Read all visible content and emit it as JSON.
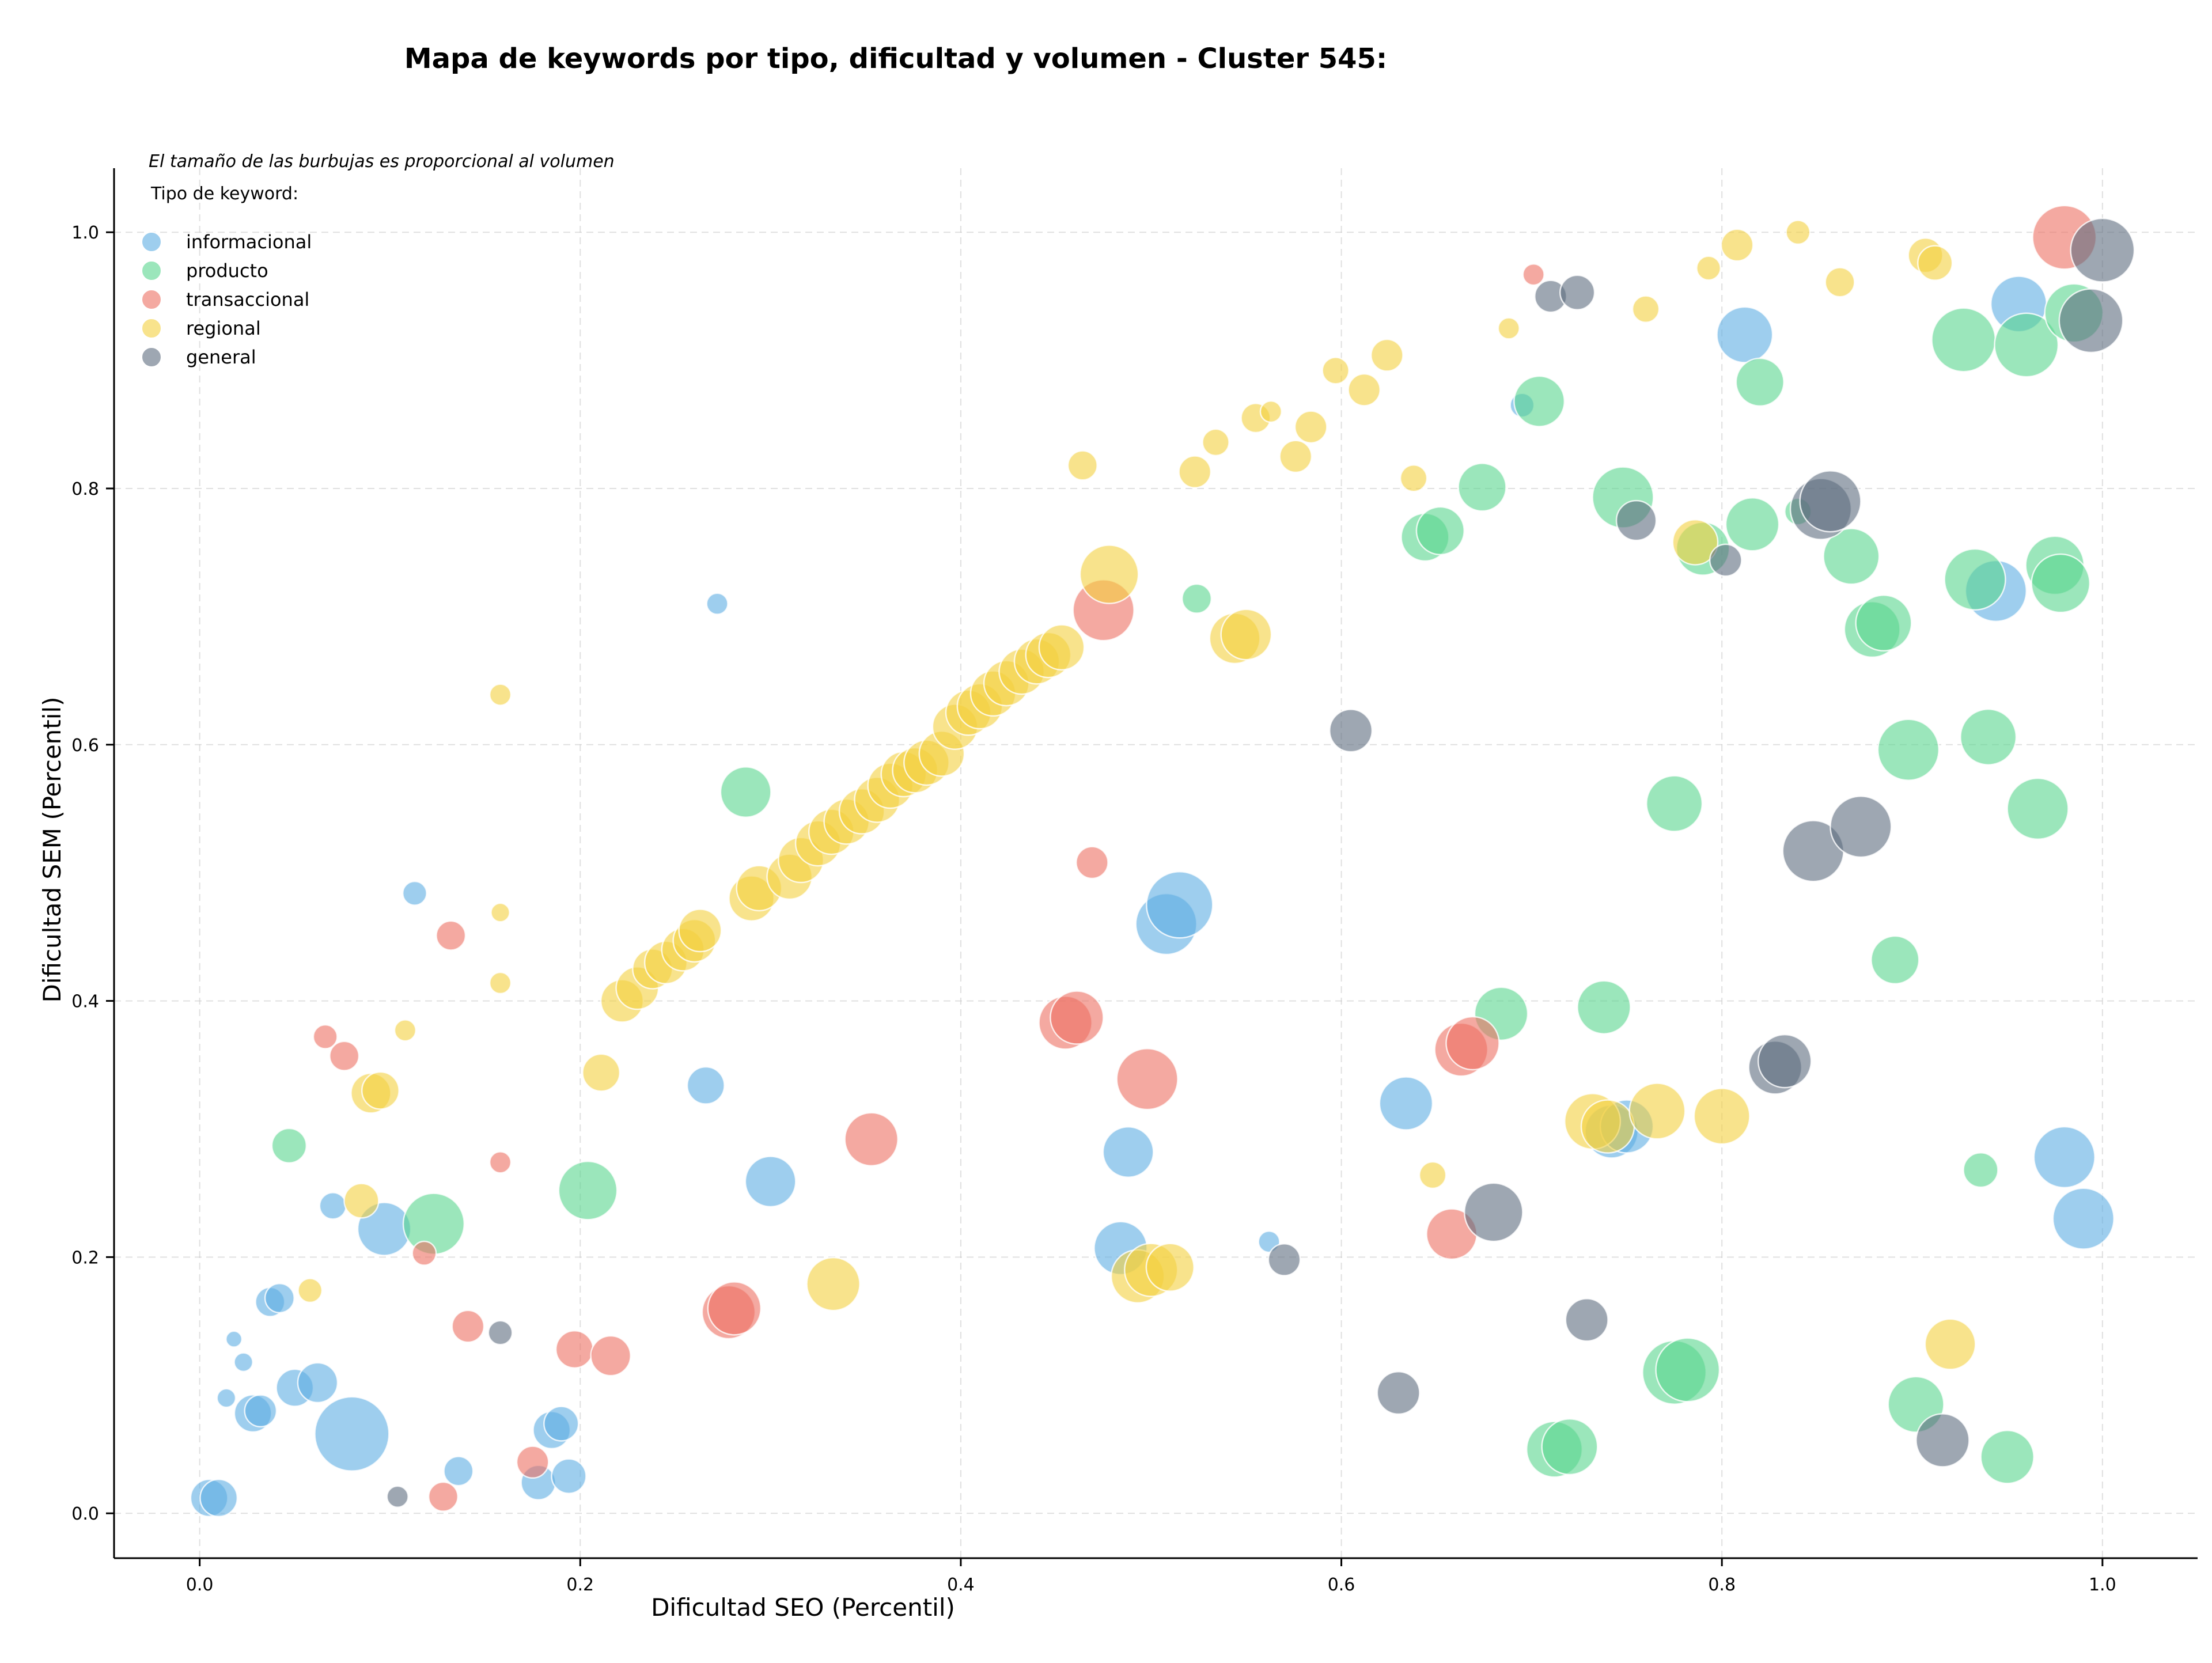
{
  "chart_data": {
    "type": "scatter",
    "title": "Mapa de keywords por tipo, dificultad y volumen - Cluster 545:",
    "xlabel": "Dificultad SEO (Percentil)",
    "ylabel": "Dificultad SEM (Percentil)",
    "xlim": [
      -0.045,
      1.05
    ],
    "ylim": [
      -0.035,
      1.05
    ],
    "xticks": [
      0.0,
      0.2,
      0.4,
      0.6,
      0.8,
      1.0
    ],
    "yticks": [
      0.0,
      0.2,
      0.4,
      0.6,
      0.8,
      1.0
    ],
    "xtick_labels": [
      "0.0",
      "0.2",
      "0.4",
      "0.6",
      "0.8",
      "1.0"
    ],
    "ytick_labels": [
      "0.0",
      "0.2",
      "0.4",
      "0.6",
      "0.8",
      "1.0"
    ],
    "grid": true,
    "annotation": "El tamaño de las burbujas es proporcional al volumen",
    "legend_title": "Tipo de keyword:",
    "legend_position": "top-left",
    "series": [
      {
        "name": "informacional",
        "color": "#5DADE2",
        "points": [
          [
            0.005,
            0.012,
            0.7
          ],
          [
            0.01,
            0.012,
            0.7
          ],
          [
            0.018,
            0.136,
            0.3
          ],
          [
            0.023,
            0.118,
            0.35
          ],
          [
            0.014,
            0.09,
            0.35
          ],
          [
            0.028,
            0.078,
            0.7
          ],
          [
            0.032,
            0.08,
            0.6
          ],
          [
            0.037,
            0.165,
            0.55
          ],
          [
            0.042,
            0.168,
            0.55
          ],
          [
            0.05,
            0.098,
            0.7
          ],
          [
            0.062,
            0.102,
            0.75
          ],
          [
            0.07,
            0.24,
            0.5
          ],
          [
            0.08,
            0.062,
            1.4
          ],
          [
            0.097,
            0.222,
            1.0
          ],
          [
            0.113,
            0.484,
            0.45
          ],
          [
            0.136,
            0.033,
            0.55
          ],
          [
            0.178,
            0.024,
            0.65
          ],
          [
            0.185,
            0.065,
            0.7
          ],
          [
            0.19,
            0.07,
            0.65
          ],
          [
            0.194,
            0.029,
            0.65
          ],
          [
            0.266,
            0.334,
            0.7
          ],
          [
            0.272,
            0.71,
            0.4
          ],
          [
            0.3,
            0.259,
            0.95
          ],
          [
            0.484,
            0.207,
            1.0
          ],
          [
            0.488,
            0.282,
            0.95
          ],
          [
            0.508,
            0.46,
            1.15
          ],
          [
            0.515,
            0.475,
            1.25
          ],
          [
            0.562,
            0.212,
            0.4
          ],
          [
            0.634,
            0.32,
            1.0
          ],
          [
            0.695,
            0.865,
            0.45
          ],
          [
            0.742,
            0.298,
            1.0
          ],
          [
            0.75,
            0.302,
            1.0
          ],
          [
            0.812,
            0.92,
            1.05
          ],
          [
            0.944,
            0.72,
            1.15
          ],
          [
            0.956,
            0.944,
            1.05
          ],
          [
            0.98,
            0.278,
            1.15
          ],
          [
            0.99,
            0.23,
            1.15
          ]
        ]
      },
      {
        "name": "producto",
        "color": "#58D68D",
        "points": [
          [
            0.047,
            0.287,
            0.65
          ],
          [
            0.123,
            0.226,
            1.15
          ],
          [
            0.204,
            0.252,
            1.1
          ],
          [
            0.287,
            0.563,
            0.95
          ],
          [
            0.524,
            0.714,
            0.55
          ],
          [
            0.644,
            0.762,
            0.9
          ],
          [
            0.652,
            0.767,
            0.9
          ],
          [
            0.674,
            0.801,
            0.9
          ],
          [
            0.684,
            0.39,
            1.0
          ],
          [
            0.704,
            0.868,
            0.95
          ],
          [
            0.712,
            0.05,
            1.05
          ],
          [
            0.72,
            0.052,
            1.05
          ],
          [
            0.738,
            0.395,
            1.0
          ],
          [
            0.748,
            0.793,
            1.15
          ],
          [
            0.775,
            0.554,
            1.05
          ],
          [
            0.775,
            0.11,
            1.2
          ],
          [
            0.782,
            0.112,
            1.2
          ],
          [
            0.79,
            0.753,
            1.0
          ],
          [
            0.816,
            0.772,
            1.0
          ],
          [
            0.82,
            0.883,
            0.9
          ],
          [
            0.84,
            0.782,
            0.5
          ],
          [
            0.868,
            0.747,
            1.05
          ],
          [
            0.879,
            0.69,
            1.05
          ],
          [
            0.885,
            0.695,
            1.05
          ],
          [
            0.891,
            0.432,
            0.9
          ],
          [
            0.898,
            0.596,
            1.15
          ],
          [
            0.902,
            0.085,
            1.05
          ],
          [
            0.927,
            0.916,
            1.2
          ],
          [
            0.933,
            0.729,
            1.15
          ],
          [
            0.936,
            0.268,
            0.65
          ],
          [
            0.94,
            0.606,
            1.05
          ],
          [
            0.95,
            0.044,
            1.0
          ],
          [
            0.96,
            0.912,
            1.2
          ],
          [
            0.966,
            0.55,
            1.15
          ],
          [
            0.975,
            0.74,
            1.1
          ],
          [
            0.978,
            0.726,
            1.1
          ],
          [
            0.985,
            0.937,
            1.1
          ]
        ]
      },
      {
        "name": "transaccional",
        "color": "#EC7063",
        "points": [
          [
            0.066,
            0.372,
            0.45
          ],
          [
            0.076,
            0.357,
            0.55
          ],
          [
            0.118,
            0.203,
            0.45
          ],
          [
            0.128,
            0.013,
            0.55
          ],
          [
            0.132,
            0.451,
            0.55
          ],
          [
            0.141,
            0.146,
            0.6
          ],
          [
            0.158,
            0.274,
            0.4
          ],
          [
            0.175,
            0.04,
            0.6
          ],
          [
            0.197,
            0.128,
            0.7
          ],
          [
            0.216,
            0.123,
            0.75
          ],
          [
            0.278,
            0.157,
            1.0
          ],
          [
            0.281,
            0.16,
            1.0
          ],
          [
            0.353,
            0.292,
            1.0
          ],
          [
            0.455,
            0.383,
            1.0
          ],
          [
            0.461,
            0.387,
            1.0
          ],
          [
            0.469,
            0.508,
            0.6
          ],
          [
            0.475,
            0.705,
            1.15
          ],
          [
            0.498,
            0.339,
            1.15
          ],
          [
            0.658,
            0.218,
            0.95
          ],
          [
            0.663,
            0.362,
            1.0
          ],
          [
            0.669,
            0.367,
            1.0
          ],
          [
            0.701,
            0.967,
            0.4
          ],
          [
            0.98,
            0.996,
            1.2
          ]
        ]
      },
      {
        "name": "regional",
        "color": "#F4D03F",
        "points": [
          [
            0.058,
            0.174,
            0.45
          ],
          [
            0.085,
            0.244,
            0.65
          ],
          [
            0.09,
            0.328,
            0.75
          ],
          [
            0.095,
            0.33,
            0.7
          ],
          [
            0.108,
            0.377,
            0.4
          ],
          [
            0.158,
            0.639,
            0.4
          ],
          [
            0.158,
            0.469,
            0.35
          ],
          [
            0.158,
            0.414,
            0.4
          ],
          [
            0.211,
            0.344,
            0.7
          ],
          [
            0.222,
            0.4,
            0.8
          ],
          [
            0.23,
            0.41,
            0.8
          ],
          [
            0.238,
            0.425,
            0.75
          ],
          [
            0.245,
            0.43,
            0.8
          ],
          [
            0.254,
            0.44,
            0.8
          ],
          [
            0.26,
            0.447,
            0.8
          ],
          [
            0.263,
            0.455,
            0.8
          ],
          [
            0.29,
            0.48,
            0.85
          ],
          [
            0.294,
            0.488,
            0.85
          ],
          [
            0.31,
            0.497,
            0.85
          ],
          [
            0.316,
            0.51,
            0.85
          ],
          [
            0.325,
            0.523,
            0.85
          ],
          [
            0.332,
            0.532,
            0.85
          ],
          [
            0.34,
            0.54,
            0.85
          ],
          [
            0.348,
            0.548,
            0.85
          ],
          [
            0.356,
            0.557,
            0.85
          ],
          [
            0.363,
            0.568,
            0.85
          ],
          [
            0.37,
            0.577,
            0.85
          ],
          [
            0.376,
            0.58,
            0.85
          ],
          [
            0.382,
            0.586,
            0.85
          ],
          [
            0.39,
            0.593,
            0.85
          ],
          [
            0.397,
            0.614,
            0.85
          ],
          [
            0.404,
            0.625,
            0.85
          ],
          [
            0.41,
            0.63,
            0.85
          ],
          [
            0.417,
            0.64,
            0.85
          ],
          [
            0.424,
            0.648,
            0.85
          ],
          [
            0.432,
            0.657,
            0.85
          ],
          [
            0.44,
            0.665,
            0.85
          ],
          [
            0.446,
            0.67,
            0.85
          ],
          [
            0.453,
            0.676,
            0.85
          ],
          [
            0.464,
            0.818,
            0.55
          ],
          [
            0.478,
            0.733,
            1.1
          ],
          [
            0.333,
            0.179,
            1.0
          ],
          [
            0.493,
            0.185,
            1.0
          ],
          [
            0.5,
            0.19,
            1.0
          ],
          [
            0.51,
            0.192,
            0.9
          ],
          [
            0.523,
            0.813,
            0.6
          ],
          [
            0.534,
            0.836,
            0.5
          ],
          [
            0.544,
            0.683,
            0.95
          ],
          [
            0.55,
            0.686,
            0.95
          ],
          [
            0.555,
            0.855,
            0.55
          ],
          [
            0.563,
            0.86,
            0.4
          ],
          [
            0.576,
            0.825,
            0.6
          ],
          [
            0.584,
            0.848,
            0.6
          ],
          [
            0.597,
            0.892,
            0.5
          ],
          [
            0.612,
            0.877,
            0.6
          ],
          [
            0.624,
            0.904,
            0.6
          ],
          [
            0.638,
            0.808,
            0.5
          ],
          [
            0.648,
            0.264,
            0.5
          ],
          [
            0.688,
            0.925,
            0.4
          ],
          [
            0.732,
            0.306,
            1.05
          ],
          [
            0.74,
            0.302,
            1.0
          ],
          [
            0.76,
            0.94,
            0.5
          ],
          [
            0.766,
            0.314,
            1.05
          ],
          [
            0.786,
            0.758,
            0.85
          ],
          [
            0.793,
            0.972,
            0.45
          ],
          [
            0.8,
            0.31,
            1.05
          ],
          [
            0.808,
            0.99,
            0.6
          ],
          [
            0.84,
            1.0,
            0.45
          ],
          [
            0.862,
            0.961,
            0.55
          ],
          [
            0.907,
            0.982,
            0.65
          ],
          [
            0.912,
            0.976,
            0.65
          ],
          [
            0.92,
            0.132,
            0.95
          ]
        ]
      },
      {
        "name": "general",
        "color": "#5D6D7E",
        "points": [
          [
            0.104,
            0.013,
            0.4
          ],
          [
            0.158,
            0.141,
            0.45
          ],
          [
            0.57,
            0.198,
            0.6
          ],
          [
            0.605,
            0.611,
            0.8
          ],
          [
            0.63,
            0.094,
            0.8
          ],
          [
            0.68,
            0.235,
            1.1
          ],
          [
            0.71,
            0.95,
            0.6
          ],
          [
            0.724,
            0.953,
            0.65
          ],
          [
            0.729,
            0.151,
            0.8
          ],
          [
            0.755,
            0.775,
            0.75
          ],
          [
            0.802,
            0.744,
            0.6
          ],
          [
            0.828,
            0.348,
            1.0
          ],
          [
            0.833,
            0.353,
            1.0
          ],
          [
            0.848,
            0.517,
            1.15
          ],
          [
            0.852,
            0.784,
            1.15
          ],
          [
            0.857,
            0.79,
            1.15
          ],
          [
            0.873,
            0.536,
            1.15
          ],
          [
            0.916,
            0.057,
            1.0
          ],
          [
            0.994,
            0.931,
            1.2
          ],
          [
            1.0,
            0.986,
            1.2
          ]
        ]
      }
    ]
  }
}
